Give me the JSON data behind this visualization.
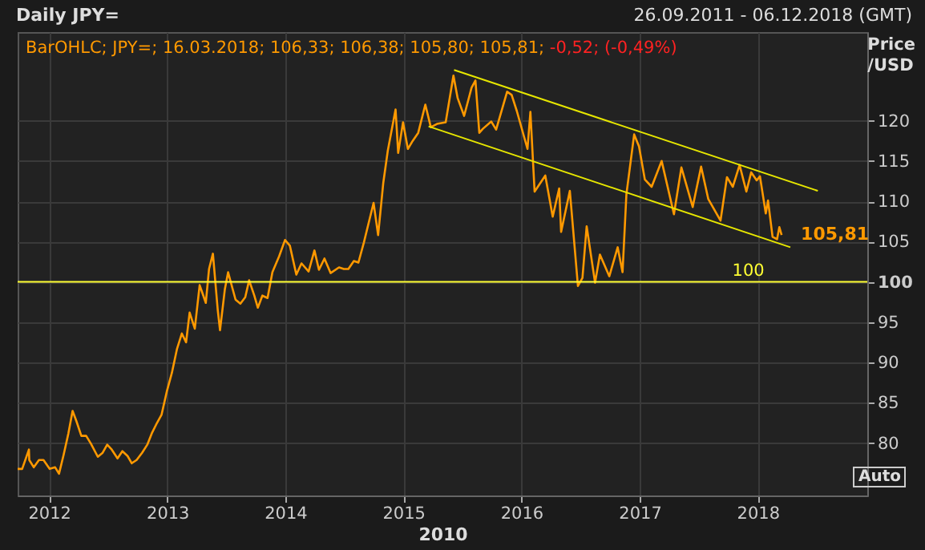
{
  "chart_data": {
    "type": "line",
    "title": "Daily JPY=",
    "subtitle": "26.09.2011 - 06.12.2018 (GMT)",
    "xlabel": "2010",
    "ylabel": "Price /USD",
    "annotations": [
      "BarOHLC; JPY=; 16.03.2018; 106,33; 106,38; 105,80; 105,81;",
      "-0,52; (-0,49%)",
      {
        "text": "105,81",
        "x": "2018-03-16",
        "y": 105.81
      },
      "Auto"
    ],
    "x": [
      "2011-09-26",
      "2011-10-10",
      "2011-10-31",
      "2011-11-01",
      "2011-11-15",
      "2011-12-01",
      "2011-12-15",
      "2012-01-03",
      "2012-01-20",
      "2012-02-01",
      "2012-02-15",
      "2012-03-01",
      "2012-03-14",
      "2012-03-26",
      "2012-04-10",
      "2012-04-25",
      "2012-05-10",
      "2012-05-31",
      "2012-06-15",
      "2012-06-29",
      "2012-07-13",
      "2012-07-31",
      "2012-08-15",
      "2012-08-31",
      "2012-09-13",
      "2012-09-28",
      "2012-10-15",
      "2012-10-31",
      "2012-11-15",
      "2012-11-30",
      "2012-12-14",
      "2012-12-31",
      "2013-01-15",
      "2013-01-31",
      "2013-02-15",
      "2013-02-28",
      "2013-03-11",
      "2013-03-27",
      "2013-04-11",
      "2013-04-30",
      "2013-05-10",
      "2013-05-22",
      "2013-06-06",
      "2013-06-13",
      "2013-06-28",
      "2013-07-08",
      "2013-07-31",
      "2013-08-15",
      "2013-08-30",
      "2013-09-11",
      "2013-09-27",
      "2013-10-08",
      "2013-10-22",
      "2013-11-07",
      "2013-11-22",
      "2013-12-13",
      "2013-12-31",
      "2014-01-15",
      "2014-02-04",
      "2014-02-20",
      "2014-03-14",
      "2014-04-01",
      "2014-04-15",
      "2014-05-02",
      "2014-05-21",
      "2014-06-16",
      "2014-07-01",
      "2014-07-15",
      "2014-08-01",
      "2014-08-15",
      "2014-09-01",
      "2014-09-15",
      "2014-10-01",
      "2014-10-15",
      "2014-10-31",
      "2014-11-14",
      "2014-12-08",
      "2014-12-16",
      "2014-12-31",
      "2015-01-15",
      "2015-01-30",
      "2015-02-16",
      "2015-03-10",
      "2015-03-27",
      "2015-04-15",
      "2015-05-12",
      "2015-06-05",
      "2015-06-18",
      "2015-07-08",
      "2015-07-31",
      "2015-08-12",
      "2015-08-24",
      "2015-09-04",
      "2015-09-30",
      "2015-10-15",
      "2015-11-18",
      "2015-12-02",
      "2015-12-18",
      "2016-01-20",
      "2016-01-29",
      "2016-02-11",
      "2016-03-15",
      "2016-04-07",
      "2016-04-27",
      "2016-05-03",
      "2016-05-30",
      "2016-06-24",
      "2016-07-08",
      "2016-07-21",
      "2016-08-16",
      "2016-08-31",
      "2016-09-29",
      "2016-10-25",
      "2016-11-09",
      "2016-11-21",
      "2016-12-15",
      "2016-12-30",
      "2017-01-17",
      "2017-02-07",
      "2017-03-10",
      "2017-04-17",
      "2017-05-10",
      "2017-06-14",
      "2017-07-10",
      "2017-08-01",
      "2017-09-08",
      "2017-09-28",
      "2017-10-16",
      "2017-11-06",
      "2017-11-27",
      "2017-12-12",
      "2017-12-29",
      "2018-01-08",
      "2018-01-26",
      "2018-02-02",
      "2018-02-16",
      "2018-03-02",
      "2018-03-09",
      "2018-03-16"
    ],
    "series": [
      {
        "color": "#ff9900",
        "values": [
          76.8,
          76.8,
          79.2,
          77.9,
          77.0,
          77.9,
          77.9,
          76.8,
          77.0,
          76.2,
          78.5,
          81.2,
          84.0,
          82.7,
          80.9,
          80.9,
          79.9,
          78.3,
          78.8,
          79.8,
          79.2,
          78.1,
          79.0,
          78.4,
          77.5,
          77.9,
          78.8,
          79.8,
          81.3,
          82.5,
          83.5,
          86.5,
          88.7,
          91.7,
          93.6,
          92.5,
          96.2,
          94.2,
          99.6,
          97.4,
          101.6,
          103.5,
          96.5,
          94.0,
          99.1,
          101.2,
          97.8,
          97.3,
          98.1,
          100.2,
          98.3,
          96.8,
          98.3,
          98.0,
          101.2,
          103.2,
          105.2,
          104.5,
          100.9,
          102.3,
          101.3,
          103.9,
          101.5,
          102.9,
          101.1,
          101.8,
          101.6,
          101.6,
          102.6,
          102.4,
          104.9,
          107.2,
          109.8,
          105.8,
          112.3,
          116.3,
          121.4,
          116.0,
          119.8,
          116.5,
          117.5,
          118.5,
          122.0,
          119.2,
          119.6,
          119.8,
          125.6,
          122.8,
          120.6,
          124.1,
          125.0,
          118.5,
          119.0,
          119.9,
          118.9,
          123.6,
          123.2,
          121.2,
          116.5,
          121.1,
          111.2,
          113.2,
          108.1,
          111.6,
          106.2,
          111.3,
          99.5,
          100.5,
          106.9,
          99.9,
          103.4,
          100.7,
          104.3,
          101.2,
          110.9,
          118.3,
          116.8,
          112.7,
          111.8,
          115.0,
          108.4,
          114.2,
          109.3,
          114.3,
          110.3,
          107.6,
          113.0,
          111.8,
          114.5,
          111.2,
          113.6,
          112.6,
          113.1,
          108.5,
          110.1,
          105.6,
          105.3,
          106.8,
          105.81
        ]
      },
      {
        "type": "line",
        "color": "#e6e600",
        "x": [
          "2015-06-07",
          "2018-07-06"
        ],
        "values": [
          126.3,
          111.3
        ]
      },
      {
        "type": "line",
        "color": "#e6e600",
        "x": [
          "2015-03-20",
          "2018-04-12"
        ],
        "values": [
          119.3,
          104.3
        ]
      }
    ],
    "xlim": [
      "2011-09-26",
      "2018-12-06"
    ],
    "xticks": [
      {
        "value": "2012-01-01",
        "label": "2012"
      },
      {
        "value": "2013-01-01",
        "label": "2013"
      },
      {
        "value": "2014-01-01",
        "label": "2014"
      },
      {
        "value": "2015-01-01",
        "label": "2015"
      },
      {
        "value": "2016-01-01",
        "label": "2016"
      },
      {
        "value": "2017-01-01",
        "label": "2017"
      },
      {
        "value": "2018-01-01",
        "label": "2018"
      }
    ],
    "ylim": [
      73.5,
      131
    ],
    "yticks": [
      80,
      85,
      90,
      95,
      100,
      105,
      110,
      115,
      120
    ],
    "ref_lines": [
      {
        "axis": "y",
        "value": 100,
        "label": "100",
        "color": "#ffff33"
      }
    ],
    "grid": true
  }
}
